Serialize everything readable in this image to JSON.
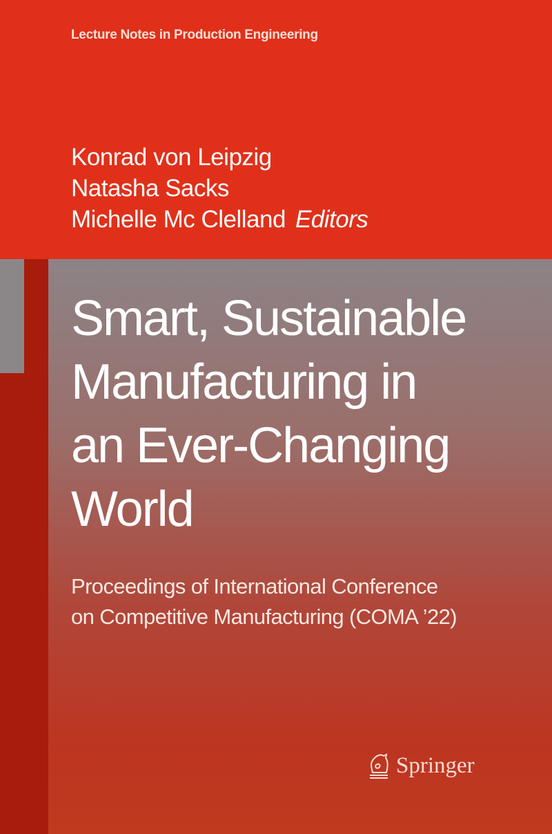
{
  "series": "Lecture Notes in Production Engineering",
  "editors": [
    "Konrad von Leipzig",
    "Natasha Sacks",
    "Michelle Mc Clelland"
  ],
  "editors_label": "Editors",
  "title": [
    "Smart, Sustainable",
    "Manufacturing in",
    "an Ever-Changing",
    "World"
  ],
  "subtitle": [
    "Proceedings of International Conference",
    "on Competitive Manufacturing (COMA ’22)"
  ],
  "publisher": "Springer",
  "colors": {
    "top_band": "#e0301a",
    "stripe": "#a81c0c",
    "gray_block": "#8b8789"
  }
}
